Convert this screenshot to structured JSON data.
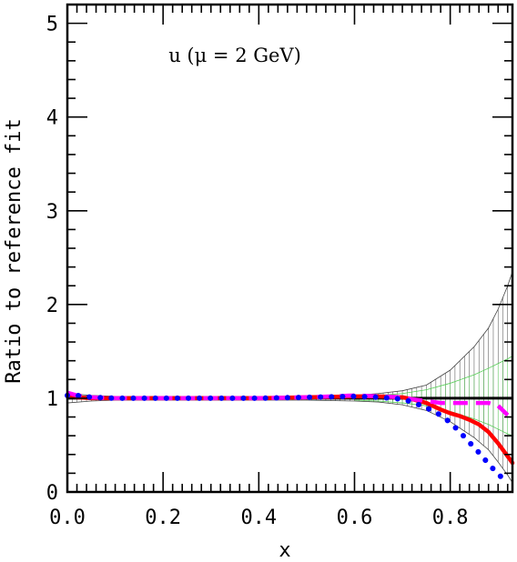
{
  "chart_data": {
    "type": "line",
    "title": "",
    "annotation": "u (μ = 2 GeV)",
    "xlabel": "x",
    "ylabel": "Ratio to reference fit",
    "xlim": [
      0,
      0.93
    ],
    "ylim": [
      0,
      5.2
    ],
    "x_ticks": [
      "0.0",
      "0.2",
      "0.4",
      "0.6",
      "0.8"
    ],
    "y_ticks": [
      "0",
      "1",
      "2",
      "3",
      "4",
      "5"
    ],
    "colors": {
      "reference": "#000000",
      "red": "#ff0000",
      "magenta": "#ff00ff",
      "blue": "#0000ff",
      "band_outer": "#444444",
      "band_inner": "#55cc55"
    },
    "series": [
      {
        "style": "solid-black",
        "x": [
          0.0,
          0.93
        ],
        "y": [
          1.0,
          1.0
        ]
      },
      {
        "style": "solid-red",
        "x": [
          0.0,
          0.02,
          0.05,
          0.1,
          0.2,
          0.3,
          0.4,
          0.5,
          0.6,
          0.65,
          0.7,
          0.72,
          0.75,
          0.78,
          0.8,
          0.82,
          0.84,
          0.86,
          0.88,
          0.9,
          0.92,
          0.93
        ],
        "y": [
          1.02,
          1.01,
          1.0,
          1.0,
          1.0,
          1.0,
          1.0,
          1.01,
          1.02,
          1.02,
          1.01,
          0.99,
          0.95,
          0.88,
          0.84,
          0.81,
          0.77,
          0.72,
          0.64,
          0.52,
          0.38,
          0.31
        ]
      },
      {
        "style": "dashed-magenta",
        "x": [
          0.0,
          0.02,
          0.05,
          0.1,
          0.2,
          0.3,
          0.4,
          0.5,
          0.6,
          0.65,
          0.7,
          0.72,
          0.75,
          0.78,
          0.8,
          0.82,
          0.84,
          0.86,
          0.88,
          0.9,
          0.92
        ],
        "y": [
          1.06,
          1.03,
          1.01,
          1.0,
          1.0,
          1.0,
          1.0,
          1.01,
          1.03,
          1.02,
          1.01,
          0.99,
          0.97,
          0.95,
          0.95,
          0.95,
          0.95,
          0.95,
          0.95,
          0.92,
          0.82
        ]
      },
      {
        "style": "dotted-blue",
        "x": [
          0.0,
          0.02,
          0.05,
          0.1,
          0.2,
          0.3,
          0.4,
          0.5,
          0.6,
          0.65,
          0.68,
          0.7,
          0.72,
          0.75,
          0.78,
          0.8,
          0.82,
          0.84,
          0.86,
          0.88,
          0.9,
          0.92
        ],
        "y": [
          1.03,
          1.03,
          1.01,
          1.0,
          1.0,
          1.0,
          1.0,
          1.01,
          1.02,
          1.01,
          1.0,
          0.99,
          0.96,
          0.9,
          0.82,
          0.74,
          0.64,
          0.53,
          0.42,
          0.3,
          0.19,
          0.1
        ]
      }
    ],
    "band_outer": {
      "x": [
        0.0,
        0.05,
        0.1,
        0.2,
        0.3,
        0.4,
        0.5,
        0.6,
        0.65,
        0.7,
        0.75,
        0.8,
        0.85,
        0.88,
        0.9,
        0.92,
        0.93
      ],
      "lower": [
        0.95,
        0.97,
        0.98,
        0.98,
        0.98,
        0.98,
        0.98,
        0.97,
        0.96,
        0.93,
        0.87,
        0.75,
        0.58,
        0.45,
        0.32,
        0.18,
        0.1
      ],
      "upper": [
        1.05,
        1.03,
        1.02,
        1.02,
        1.02,
        1.02,
        1.02,
        1.03,
        1.05,
        1.08,
        1.14,
        1.3,
        1.55,
        1.75,
        1.95,
        2.2,
        2.35
      ]
    },
    "band_inner": {
      "x": [
        0.6,
        0.65,
        0.7,
        0.75,
        0.8,
        0.85,
        0.88,
        0.9,
        0.92,
        0.93
      ],
      "lower": [
        0.98,
        0.97,
        0.95,
        0.92,
        0.86,
        0.78,
        0.72,
        0.67,
        0.62,
        0.6
      ],
      "upper": [
        1.02,
        1.03,
        1.05,
        1.09,
        1.16,
        1.25,
        1.32,
        1.37,
        1.42,
        1.45
      ]
    }
  }
}
